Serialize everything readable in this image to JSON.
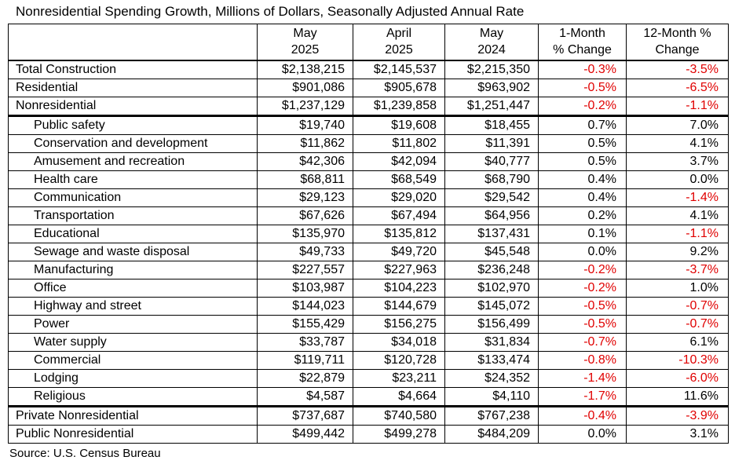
{
  "title": "Nonresidential Spending Growth, Millions of Dollars, Seasonally Adjusted Annual Rate",
  "source": "Source: U.S. Census Bureau",
  "colors": {
    "negative_change": "#e00000",
    "text": "#000000",
    "border": "#000000",
    "background": "#ffffff"
  },
  "chart_data": {
    "type": "table",
    "title": "Nonresidential Spending Growth, Millions of Dollars, Seasonally Adjusted Annual Rate",
    "units": "Millions of Dollars, Seasonally Adjusted Annual Rate",
    "column_headers": [
      {
        "line1": "May",
        "line2": "2025"
      },
      {
        "line1": "April",
        "line2": "2025"
      },
      {
        "line1": "May",
        "line2": "2024"
      },
      {
        "line1": "1-Month",
        "line2": "% Change"
      },
      {
        "line1": "12-Month %",
        "line2": "Change"
      }
    ],
    "rows": [
      {
        "label": "Total Construction",
        "indent": false,
        "may_2025": "$2,138,215",
        "april_2025": "$2,145,537",
        "may_2024": "$2,215,350",
        "change_1m": "-0.3%",
        "change_12m": "-3.5%",
        "section_end": false
      },
      {
        "label": "Residential",
        "indent": false,
        "may_2025": "$901,086",
        "april_2025": "$905,678",
        "may_2024": "$963,902",
        "change_1m": "-0.5%",
        "change_12m": "-6.5%",
        "section_end": false
      },
      {
        "label": "Nonresidential",
        "indent": false,
        "may_2025": "$1,237,129",
        "april_2025": "$1,239,858",
        "may_2024": "$1,251,447",
        "change_1m": "-0.2%",
        "change_12m": "-1.1%",
        "section_end": true
      },
      {
        "label": "Public safety",
        "indent": true,
        "may_2025": "$19,740",
        "april_2025": "$19,608",
        "may_2024": "$18,455",
        "change_1m": "0.7%",
        "change_12m": "7.0%",
        "section_end": false
      },
      {
        "label": "Conservation and development",
        "indent": true,
        "may_2025": "$11,862",
        "april_2025": "$11,802",
        "may_2024": "$11,391",
        "change_1m": "0.5%",
        "change_12m": "4.1%",
        "section_end": false
      },
      {
        "label": "Amusement and recreation",
        "indent": true,
        "may_2025": "$42,306",
        "april_2025": "$42,094",
        "may_2024": "$40,777",
        "change_1m": "0.5%",
        "change_12m": "3.7%",
        "section_end": false
      },
      {
        "label": "Health care",
        "indent": true,
        "may_2025": "$68,811",
        "april_2025": "$68,549",
        "may_2024": "$68,790",
        "change_1m": "0.4%",
        "change_12m": "0.0%",
        "section_end": false
      },
      {
        "label": "Communication",
        "indent": true,
        "may_2025": "$29,123",
        "april_2025": "$29,020",
        "may_2024": "$29,542",
        "change_1m": "0.4%",
        "change_12m": "-1.4%",
        "section_end": false
      },
      {
        "label": "Transportation",
        "indent": true,
        "may_2025": "$67,626",
        "april_2025": "$67,494",
        "may_2024": "$64,956",
        "change_1m": "0.2%",
        "change_12m": "4.1%",
        "section_end": false
      },
      {
        "label": "Educational",
        "indent": true,
        "may_2025": "$135,970",
        "april_2025": "$135,812",
        "may_2024": "$137,431",
        "change_1m": "0.1%",
        "change_12m": "-1.1%",
        "section_end": false
      },
      {
        "label": "Sewage and waste disposal",
        "indent": true,
        "may_2025": "$49,733",
        "april_2025": "$49,720",
        "may_2024": "$45,548",
        "change_1m": "0.0%",
        "change_12m": "9.2%",
        "section_end": false
      },
      {
        "label": "Manufacturing",
        "indent": true,
        "may_2025": "$227,557",
        "april_2025": "$227,963",
        "may_2024": "$236,248",
        "change_1m": "-0.2%",
        "change_12m": "-3.7%",
        "section_end": false
      },
      {
        "label": "Office",
        "indent": true,
        "may_2025": "$103,987",
        "april_2025": "$104,223",
        "may_2024": "$102,970",
        "change_1m": "-0.2%",
        "change_12m": "1.0%",
        "section_end": false
      },
      {
        "label": "Highway and street",
        "indent": true,
        "may_2025": "$144,023",
        "april_2025": "$144,679",
        "may_2024": "$145,072",
        "change_1m": "-0.5%",
        "change_12m": "-0.7%",
        "section_end": false
      },
      {
        "label": "Power",
        "indent": true,
        "may_2025": "$155,429",
        "april_2025": "$156,275",
        "may_2024": "$156,499",
        "change_1m": "-0.5%",
        "change_12m": "-0.7%",
        "section_end": false
      },
      {
        "label": "Water supply",
        "indent": true,
        "may_2025": "$33,787",
        "april_2025": "$34,018",
        "may_2024": "$31,834",
        "change_1m": "-0.7%",
        "change_12m": "6.1%",
        "section_end": false
      },
      {
        "label": "Commercial",
        "indent": true,
        "may_2025": "$119,711",
        "april_2025": "$120,728",
        "may_2024": "$133,474",
        "change_1m": "-0.8%",
        "change_12m": "-10.3%",
        "section_end": false
      },
      {
        "label": "Lodging",
        "indent": true,
        "may_2025": "$22,879",
        "april_2025": "$23,211",
        "may_2024": "$24,352",
        "change_1m": "-1.4%",
        "change_12m": "-6.0%",
        "section_end": false
      },
      {
        "label": "Religious",
        "indent": true,
        "may_2025": "$4,587",
        "april_2025": "$4,664",
        "may_2024": "$4,110",
        "change_1m": "-1.7%",
        "change_12m": "11.6%",
        "section_end": true
      },
      {
        "label": "Private Nonresidential",
        "indent": false,
        "may_2025": "$737,687",
        "april_2025": "$740,580",
        "may_2024": "$767,238",
        "change_1m": "-0.4%",
        "change_12m": "-3.9%",
        "section_end": false
      },
      {
        "label": "Public Nonresidential",
        "indent": false,
        "may_2025": "$499,442",
        "april_2025": "$499,278",
        "may_2024": "$484,209",
        "change_1m": "0.0%",
        "change_12m": "3.1%",
        "section_end": false
      }
    ]
  }
}
